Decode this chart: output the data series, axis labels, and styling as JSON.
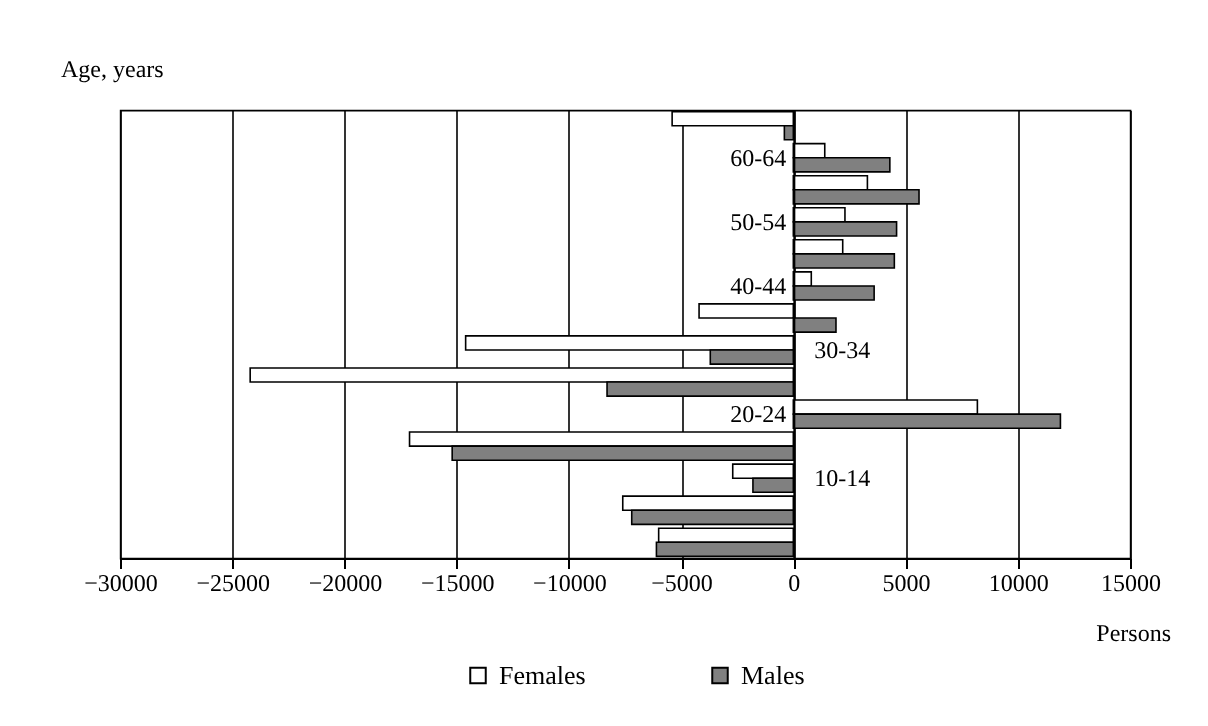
{
  "chart_data": {
    "type": "bar",
    "orientation": "horizontal",
    "xlabel": "Persons",
    "ylabel": "Age, years",
    "categories": [
      null,
      "60-64",
      null,
      "50-54",
      null,
      "40-44",
      null,
      "30-34",
      null,
      "20-24",
      null,
      "10-14",
      null,
      null
    ],
    "series": [
      {
        "name": "Females",
        "color": "#ffffff",
        "values": [
          -5400,
          1400,
          3300,
          2300,
          2200,
          800,
          -4200,
          -14600,
          -24200,
          8200,
          -17100,
          -2700,
          -7600,
          -6000
        ]
      },
      {
        "name": "Males",
        "color": "#808080",
        "values": [
          -400,
          4300,
          5600,
          4600,
          4500,
          3600,
          1900,
          -3700,
          -8300,
          11900,
          -15200,
          -1800,
          -7200,
          -6100
        ]
      }
    ],
    "xlim": [
      -30000,
      15000
    ],
    "xticks": [
      -30000,
      -25000,
      -20000,
      -15000,
      -10000,
      -5000,
      0,
      5000,
      10000,
      15000
    ],
    "grid": "x",
    "legend": "bottom"
  }
}
